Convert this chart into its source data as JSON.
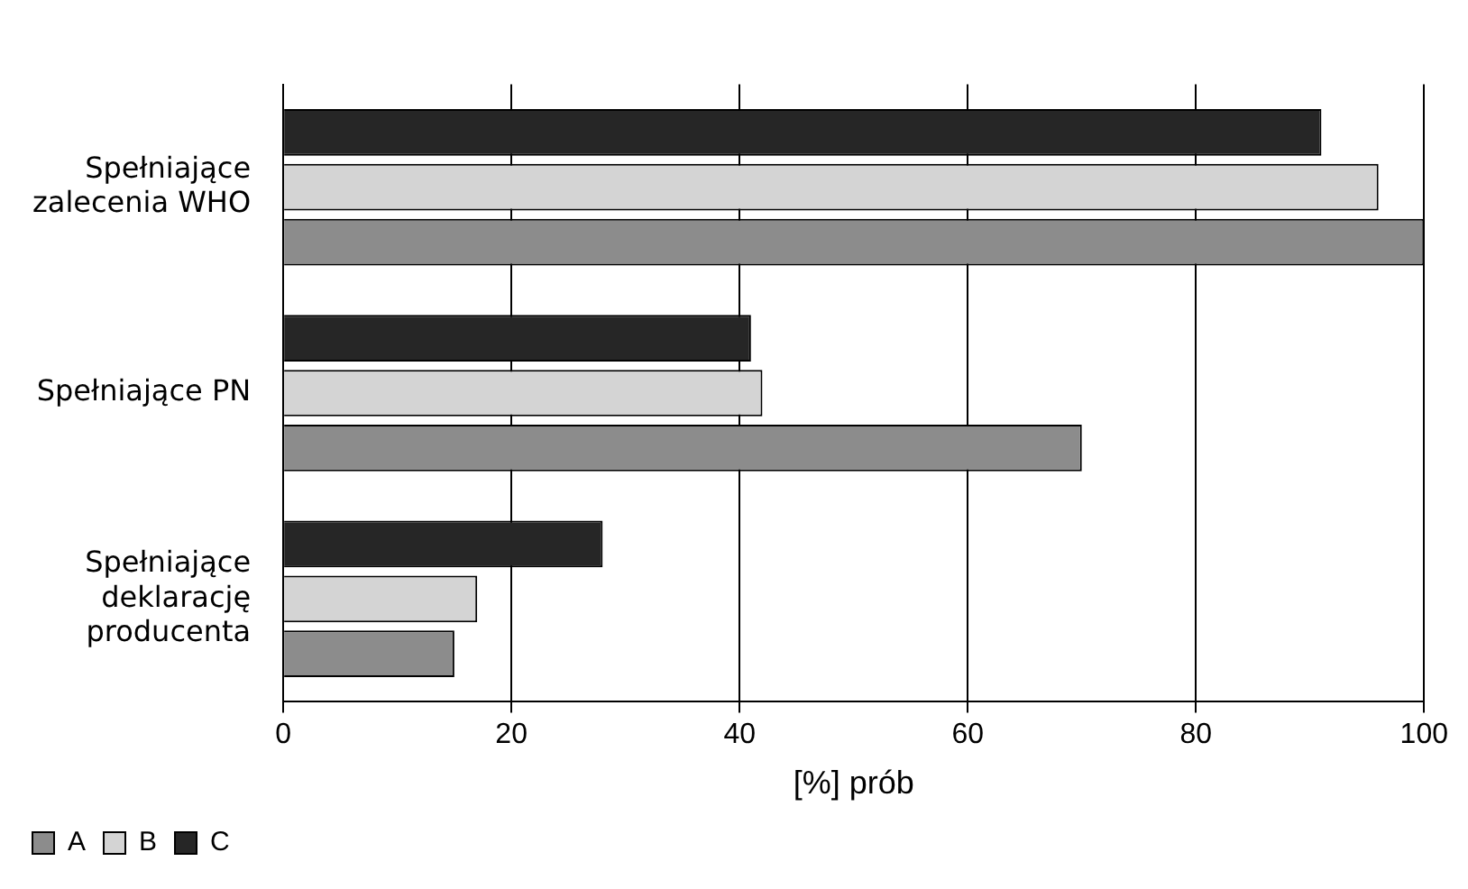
{
  "chart_data": {
    "type": "bar",
    "orientation": "horizontal",
    "xlabel": "[%] prób",
    "categories": [
      "Spełniające zalecenia WHO",
      "Spełniające PN",
      "Spełniające deklarację producenta"
    ],
    "series": [
      {
        "name": "A",
        "color": "#8c8c8c",
        "values": [
          100,
          70,
          15
        ]
      },
      {
        "name": "B",
        "color": "#d4d4d4",
        "values": [
          96,
          42,
          17
        ]
      },
      {
        "name": "C",
        "color": "#262626",
        "values": [
          91,
          41,
          28
        ]
      }
    ],
    "xlim": [
      0,
      100
    ],
    "xticks": [
      0,
      20,
      40,
      60,
      80,
      100
    ],
    "grid": "x",
    "legend": "bottom"
  }
}
